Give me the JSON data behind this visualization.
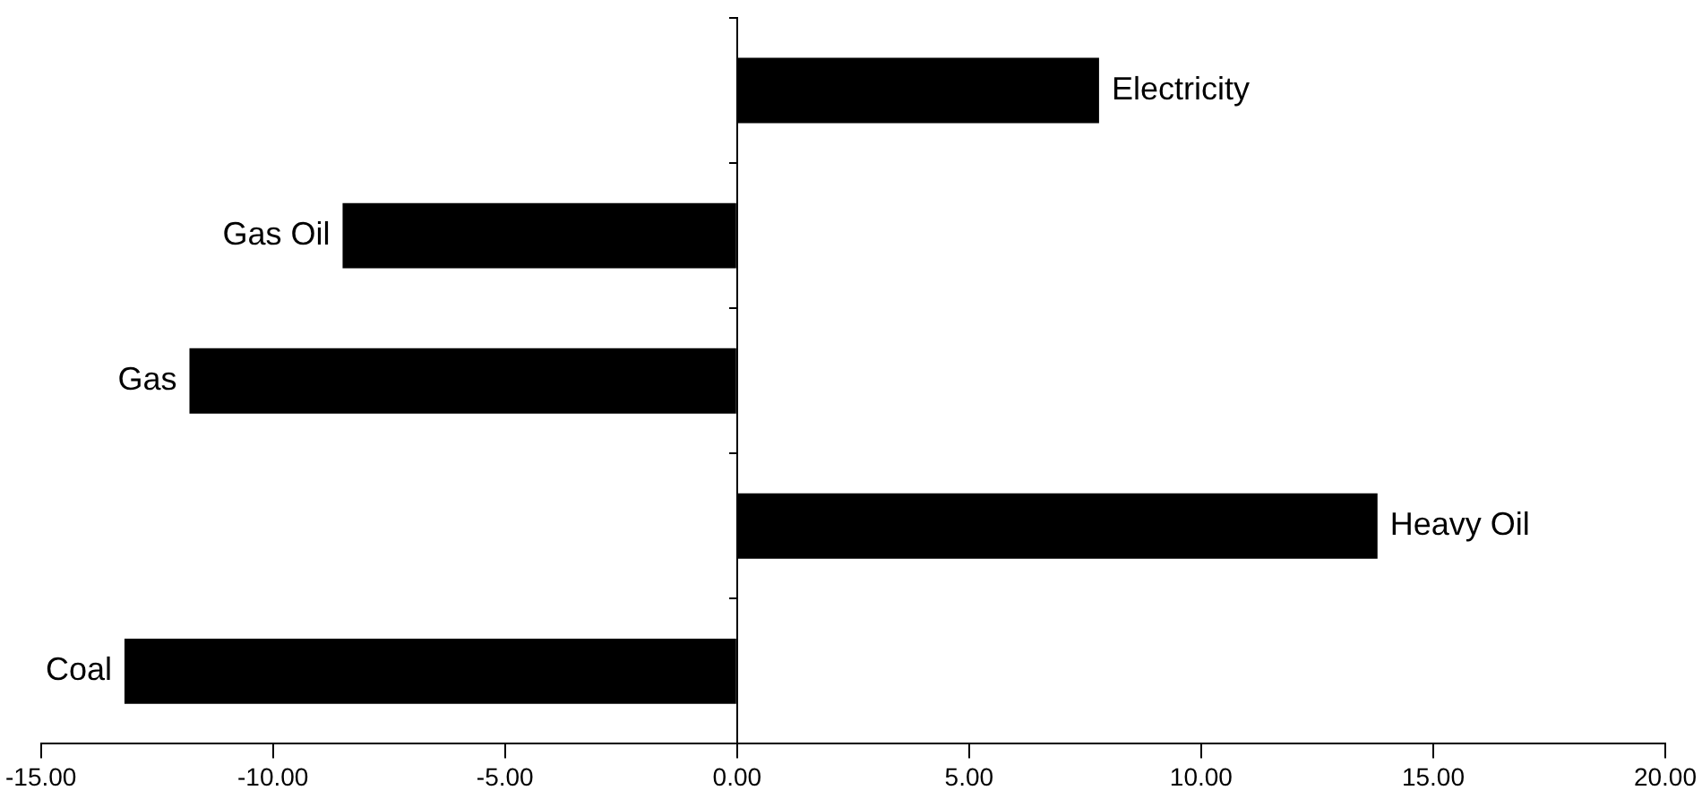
{
  "chart_data": {
    "type": "bar",
    "orientation": "horizontal",
    "categories": [
      "Electricity",
      "Gas Oil",
      "Gas",
      "Heavy Oil",
      "Coal"
    ],
    "values": [
      7.8,
      -8.5,
      -11.8,
      13.8,
      -13.2
    ],
    "color": "#000000",
    "xlim": [
      -15,
      20
    ],
    "xticks": [
      {
        "value": -15,
        "label": "-15.00"
      },
      {
        "value": -10,
        "label": "-10.00"
      },
      {
        "value": -5,
        "label": "-5.00"
      },
      {
        "value": 0,
        "label": "0.00"
      },
      {
        "value": 5,
        "label": "5.00"
      },
      {
        "value": 10,
        "label": "10.00"
      },
      {
        "value": 15,
        "label": "15.00"
      },
      {
        "value": 20,
        "label": "20.00"
      }
    ],
    "legend": false
  }
}
